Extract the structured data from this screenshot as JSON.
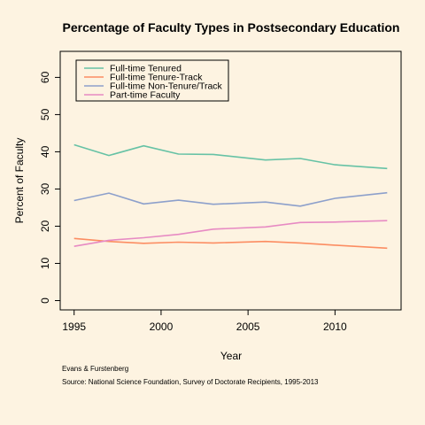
{
  "chart_data": {
    "type": "line",
    "title": "Percentage of Faculty Types in Postsecondary Education",
    "xlabel": "Year",
    "ylabel": "Percent of Faculty",
    "xlim": [
      1994.2,
      2013.8
    ],
    "ylim": [
      -2.5,
      67
    ],
    "xticks": [
      1995,
      2000,
      2005,
      2010
    ],
    "yticks": [
      0,
      10,
      20,
      30,
      40,
      50,
      60
    ],
    "legend_position": "top-left",
    "grid": false,
    "x": [
      1995,
      1997,
      1999,
      2001,
      2003,
      2006,
      2008,
      2010,
      2013
    ],
    "series": [
      {
        "name": "Full-time Tenured",
        "color": "#66c2a5",
        "values": [
          41.9,
          39.0,
          41.6,
          39.4,
          39.3,
          37.8,
          38.2,
          36.5,
          35.5
        ]
      },
      {
        "name": "Full-time Tenure-Track",
        "color": "#fc8d62",
        "values": [
          16.7,
          15.9,
          15.4,
          15.7,
          15.5,
          15.9,
          15.5,
          14.9,
          14.1
        ]
      },
      {
        "name": "Full-time Non-Tenure/Track",
        "color": "#8da0cb",
        "values": [
          26.9,
          28.9,
          26.0,
          27.0,
          25.9,
          26.5,
          25.4,
          27.5,
          29.0
        ]
      },
      {
        "name": "Part-time Faculty",
        "color": "#e78ac3",
        "values": [
          14.6,
          16.2,
          16.9,
          17.8,
          19.2,
          19.8,
          21.0,
          21.1,
          21.5
        ]
      }
    ]
  },
  "footnotes": {
    "author": "Evans & Furstenberg",
    "source": "Source: National Science Foundation, Survey of Doctorate Recipients, 1995-2013"
  }
}
